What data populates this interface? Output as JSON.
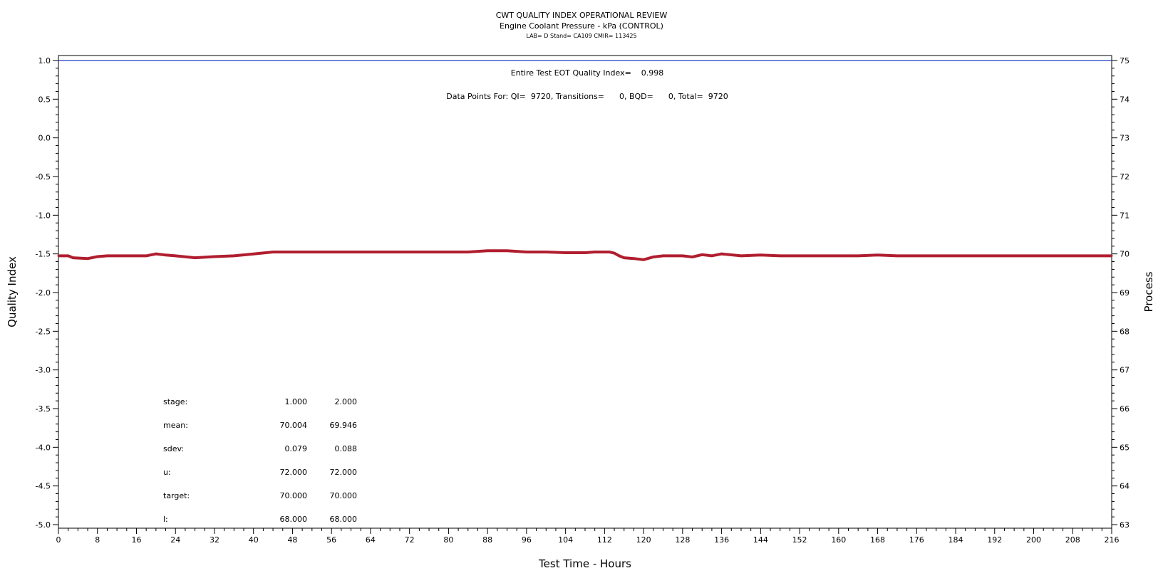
{
  "chart_data": {
    "type": "line",
    "title": "CWT QUALITY INDEX OPERATIONAL REVIEW",
    "subtitle": "Engine Coolant Pressure - kPa (CONTROL)",
    "subtitle2": "LAB= D Stand= CA109 CMIR= 113425",
    "xlabel": "Test Time - Hours",
    "ylabel_left": "Quality Index",
    "ylabel_right": "Process",
    "xlim": [
      0,
      216
    ],
    "ylim_left": [
      -5.0,
      1.0
    ],
    "ylim_right": [
      63,
      75
    ],
    "x_ticks": [
      0,
      8,
      16,
      24,
      32,
      40,
      48,
      56,
      64,
      72,
      80,
      88,
      96,
      104,
      112,
      120,
      128,
      136,
      144,
      152,
      160,
      168,
      176,
      184,
      192,
      200,
      208,
      216
    ],
    "y_ticks_left": [
      "1.0",
      "0.5",
      "0.0",
      "-0.5",
      "-1.0",
      "-1.5",
      "-2.0",
      "-2.5",
      "-3.0",
      "-3.5",
      "-4.0",
      "-4.5",
      "-5.0"
    ],
    "y_ticks_right": [
      75,
      74,
      73,
      72,
      71,
      70,
      69,
      68,
      67,
      66,
      65,
      64,
      63
    ],
    "annotations": {
      "quality_index_text": "Entire Test EOT Quality Index=    0.998",
      "data_points_text": "Data Points For: QI=  9720, Transitions=      0, BQD=      0, Total=  9720"
    },
    "stats_table": {
      "rows": [
        {
          "label": "stage:",
          "values": [
            "1.000",
            "2.000"
          ]
        },
        {
          "label": "mean:",
          "values": [
            "70.004",
            "69.946"
          ]
        },
        {
          "label": "sdev:",
          "values": [
            "0.079",
            "0.088"
          ]
        },
        {
          "label": "u:",
          "values": [
            "72.000",
            "72.000"
          ]
        },
        {
          "label": "target:",
          "values": [
            "70.000",
            "70.000"
          ]
        },
        {
          "label": "l:",
          "values": [
            "68.000",
            "68.000"
          ]
        }
      ]
    },
    "series": [
      {
        "name": "",
        "axis": "left",
        "color": "#1f3fbf",
        "x": [
          0,
          216
        ],
        "y": [
          1.0,
          1.0
        ]
      },
      {
        "name": "",
        "axis": "right",
        "color": "#b01e2f",
        "x": [
          0,
          2,
          3,
          6,
          8,
          10,
          14,
          18,
          20,
          22,
          24,
          28,
          32,
          36,
          40,
          44,
          48,
          52,
          56,
          60,
          64,
          68,
          72,
          76,
          80,
          84,
          88,
          92,
          96,
          100,
          104,
          108,
          110,
          112,
          113,
          114,
          115,
          116,
          118,
          120,
          122,
          124,
          128,
          130,
          132,
          134,
          136,
          140,
          144,
          148,
          152,
          156,
          160,
          164,
          168,
          172,
          176,
          180,
          184,
          188,
          192,
          196,
          200,
          204,
          208,
          212,
          216
        ],
        "y": [
          69.95,
          69.95,
          69.9,
          69.88,
          69.93,
          69.95,
          69.95,
          69.95,
          70.0,
          69.97,
          69.95,
          69.9,
          69.93,
          69.95,
          70.0,
          70.05,
          70.05,
          70.05,
          70.05,
          70.05,
          70.05,
          70.05,
          70.05,
          70.05,
          70.05,
          70.05,
          70.08,
          70.08,
          70.05,
          70.05,
          70.03,
          70.03,
          70.05,
          70.05,
          70.05,
          70.02,
          69.95,
          69.9,
          69.88,
          69.85,
          69.92,
          69.95,
          69.95,
          69.92,
          69.98,
          69.95,
          70.0,
          69.95,
          69.97,
          69.95,
          69.95,
          69.95,
          69.95,
          69.95,
          69.97,
          69.95,
          69.95,
          69.95,
          69.95,
          69.95,
          69.95,
          69.95,
          69.95,
          69.95,
          69.95,
          69.95,
          69.95
        ]
      }
    ]
  }
}
